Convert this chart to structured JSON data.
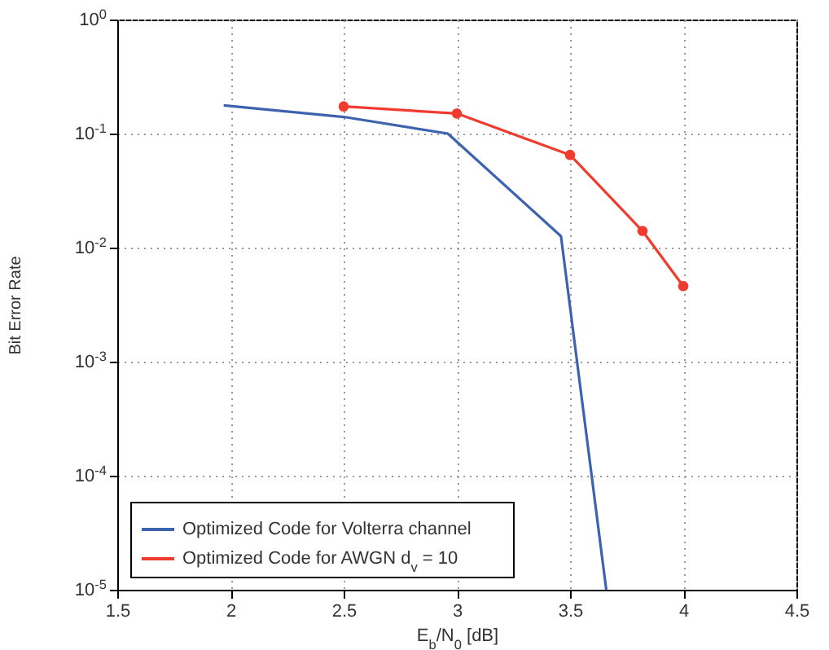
{
  "chart_data": {
    "type": "line",
    "xlabel": "E$_{b}$/N$_{0}$ [dB]",
    "ylabel": "Bit Error Rate",
    "log": "y",
    "grid": true,
    "legend": "bottom left",
    "line_style": "solid",
    "xlim": [
      1.5,
      4.5
    ],
    "xticks": [
      1.5,
      2,
      2.5,
      3,
      3.5,
      4,
      4.5
    ],
    "ylim": [
      1e-05,
      1
    ],
    "yticks": [
      {
        "value": 1e-05,
        "label": "10$^{-5}$"
      },
      {
        "value": 0.0001,
        "label": "10$^{-4}$"
      },
      {
        "value": 0.001,
        "label": "10$^{-3}$"
      },
      {
        "value": 0.01,
        "label": "10$^{-2}$"
      },
      {
        "value": 0.1,
        "label": "10$^{-1}$"
      },
      {
        "value": 1,
        "label": "10$^{0}$"
      }
    ],
    "series": [
      {
        "name": "Optimized Code for Volterra channel",
        "color": "#3d63b0",
        "marker": "none",
        "x": [
          1.97,
          2.5,
          2.96,
          3.46,
          3.66
        ],
        "values": [
          0.177,
          0.14,
          0.1,
          0.0126,
          1e-05
        ]
      },
      {
        "name": "Optimized Code for AWGN d$_{v}$ = 10",
        "color": "#f03c2e",
        "marker": "circle",
        "x": [
          2.5,
          3,
          3.5,
          3.82,
          4
        ],
        "values": [
          0.173,
          0.15,
          0.065,
          0.014,
          0.0046
        ]
      }
    ]
  }
}
